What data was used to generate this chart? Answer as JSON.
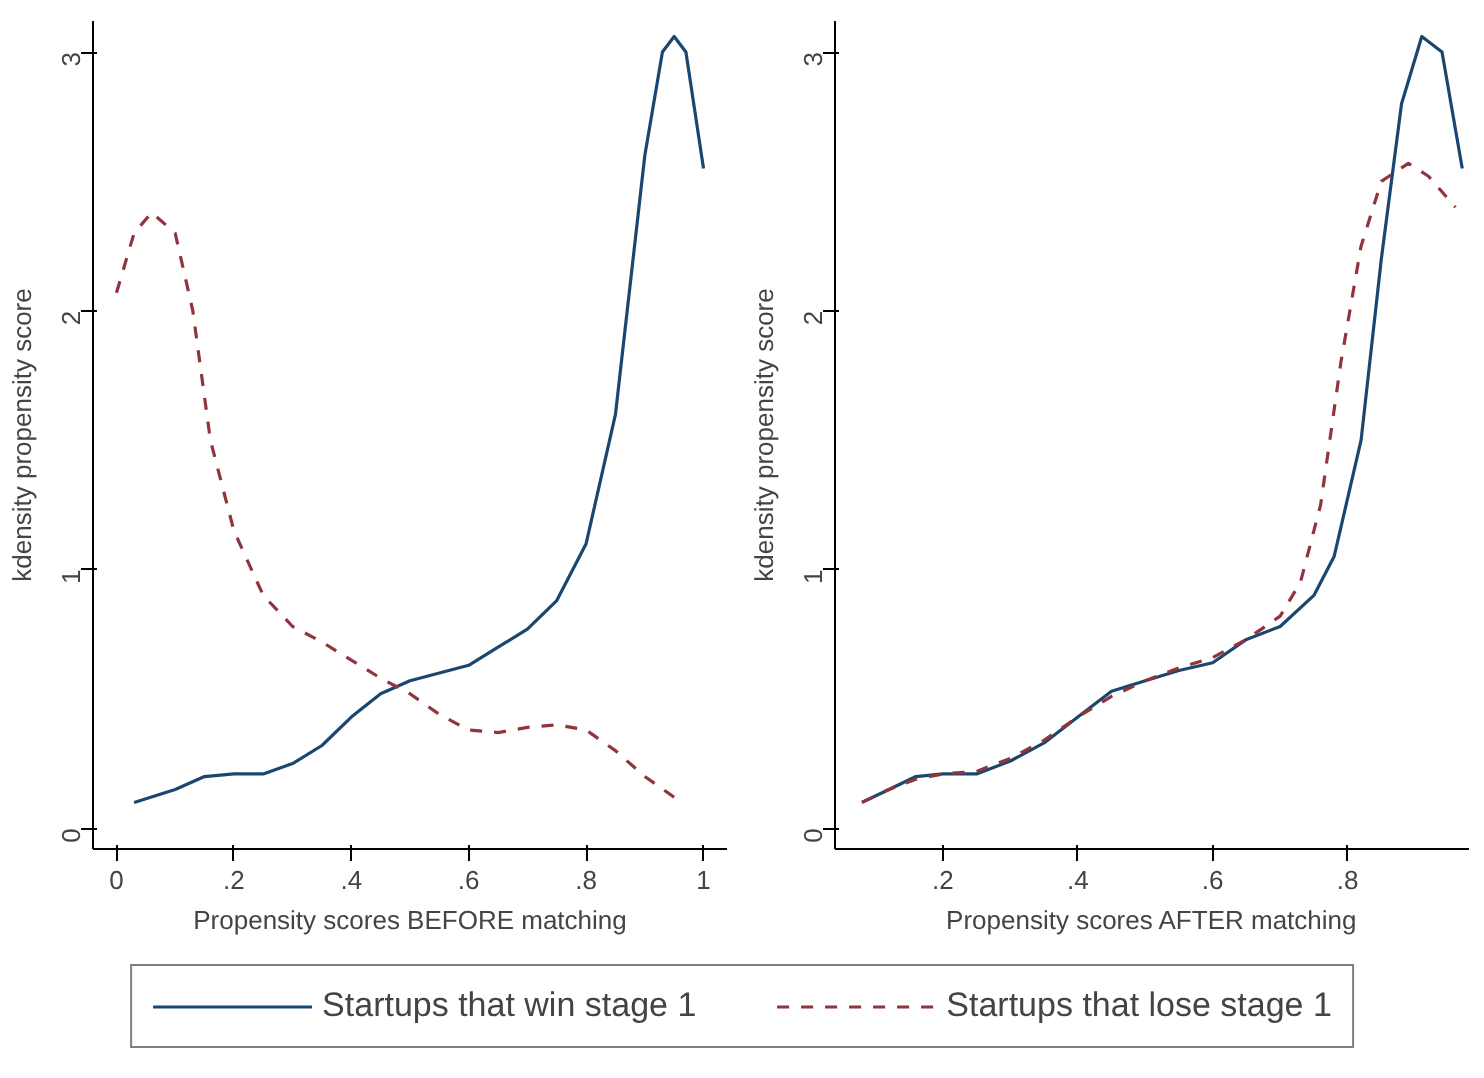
{
  "chart_data": [
    {
      "type": "line",
      "xlabel": "Propensity scores BEFORE matching",
      "ylabel": "kdensity propensity score",
      "xlim": [
        -0.04,
        1.04
      ],
      "ylim": [
        -0.08,
        3.12
      ],
      "xticks": [
        {
          "value": 0,
          "label": "0"
        },
        {
          "value": 0.2,
          "label": ".2"
        },
        {
          "value": 0.4,
          "label": ".4"
        },
        {
          "value": 0.6,
          "label": ".6"
        },
        {
          "value": 0.8,
          "label": ".8"
        },
        {
          "value": 1,
          "label": "1"
        }
      ],
      "yticks": [
        0,
        1,
        2,
        3
      ],
      "grid": false,
      "legend": "bottom",
      "series": [
        {
          "name": "Startups that win stage 1",
          "color": "#1a476f",
          "line_style": "solid",
          "x": [
            0.03,
            0.1,
            0.15,
            0.2,
            0.25,
            0.3,
            0.35,
            0.4,
            0.45,
            0.5,
            0.55,
            0.6,
            0.65,
            0.7,
            0.75,
            0.8,
            0.85,
            0.88,
            0.9,
            0.93,
            0.95,
            0.97,
            1.0
          ],
          "values": [
            0.1,
            0.15,
            0.2,
            0.21,
            0.21,
            0.25,
            0.32,
            0.43,
            0.52,
            0.57,
            0.6,
            0.63,
            0.7,
            0.77,
            0.88,
            1.1,
            1.6,
            2.2,
            2.6,
            3.0,
            3.06,
            3.0,
            2.55
          ]
        },
        {
          "name": "Startups that lose stage 1",
          "color": "#90353b",
          "line_style": "dashed",
          "x": [
            0.0,
            0.03,
            0.06,
            0.1,
            0.13,
            0.16,
            0.2,
            0.25,
            0.3,
            0.35,
            0.4,
            0.45,
            0.5,
            0.55,
            0.6,
            0.65,
            0.7,
            0.75,
            0.8,
            0.85,
            0.9,
            0.95
          ],
          "values": [
            2.07,
            2.3,
            2.38,
            2.3,
            2.0,
            1.5,
            1.15,
            0.9,
            0.78,
            0.72,
            0.65,
            0.58,
            0.52,
            0.44,
            0.38,
            0.37,
            0.39,
            0.4,
            0.38,
            0.3,
            0.2,
            0.12
          ]
        }
      ]
    },
    {
      "type": "line",
      "xlabel": "Propensity scores AFTER matching",
      "ylabel": "kdensity propensity score",
      "xlim": [
        0.04,
        0.98
      ],
      "ylim": [
        -0.08,
        3.12
      ],
      "xticks": [
        {
          "value": 0.2,
          "label": ".2"
        },
        {
          "value": 0.4,
          "label": ".4"
        },
        {
          "value": 0.6,
          "label": ".6"
        },
        {
          "value": 0.8,
          "label": ".8"
        }
      ],
      "yticks": [
        0,
        1,
        2,
        3
      ],
      "grid": false,
      "series": [
        {
          "color": "#1a476f",
          "line_style": "solid",
          "x": [
            0.08,
            0.12,
            0.16,
            0.2,
            0.25,
            0.3,
            0.35,
            0.4,
            0.45,
            0.5,
            0.55,
            0.6,
            0.65,
            0.7,
            0.75,
            0.78,
            0.82,
            0.85,
            0.88,
            0.91,
            0.94,
            0.97
          ],
          "values": [
            0.1,
            0.15,
            0.2,
            0.21,
            0.21,
            0.26,
            0.33,
            0.43,
            0.53,
            0.57,
            0.61,
            0.64,
            0.73,
            0.78,
            0.9,
            1.05,
            1.5,
            2.2,
            2.8,
            3.06,
            3.0,
            2.55
          ]
        },
        {
          "color": "#90353b",
          "line_style": "dashed",
          "x": [
            0.08,
            0.12,
            0.16,
            0.2,
            0.25,
            0.3,
            0.35,
            0.4,
            0.45,
            0.5,
            0.55,
            0.6,
            0.65,
            0.7,
            0.73,
            0.76,
            0.79,
            0.82,
            0.85,
            0.89,
            0.92,
            0.96
          ],
          "values": [
            0.1,
            0.15,
            0.19,
            0.21,
            0.22,
            0.27,
            0.34,
            0.43,
            0.51,
            0.57,
            0.62,
            0.66,
            0.73,
            0.82,
            0.95,
            1.25,
            1.8,
            2.25,
            2.5,
            2.57,
            2.52,
            2.4
          ]
        }
      ]
    }
  ]
}
